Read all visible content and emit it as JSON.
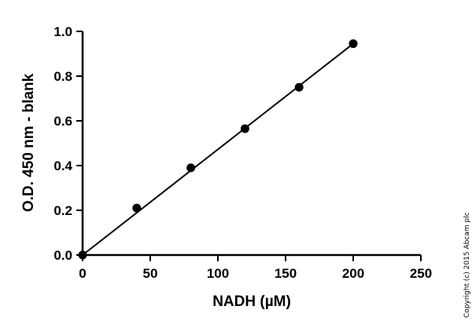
{
  "chart_data": {
    "type": "scatter",
    "xlabel": "NADH (µM)",
    "ylabel": "O.D. 450 nm - blank",
    "xlim": [
      0,
      250
    ],
    "ylim": [
      0,
      1.0
    ],
    "xticks": [
      "0",
      "50",
      "100",
      "150",
      "200",
      "250"
    ],
    "yticks": [
      "0.0",
      "0.2",
      "0.4",
      "0.6",
      "0.8",
      "1.0"
    ],
    "grid": false,
    "points": {
      "x": [
        0,
        40,
        80,
        120,
        160,
        200
      ],
      "y": [
        0.0,
        0.21,
        0.39,
        0.565,
        0.75,
        0.945
      ]
    },
    "fit_line": {
      "x": [
        0,
        200
      ],
      "y": [
        0.0,
        0.945
      ]
    },
    "marker_color": "#000000",
    "line_color": "#000000"
  },
  "copyright": "Copyright (c) 2015 Abcam plc"
}
